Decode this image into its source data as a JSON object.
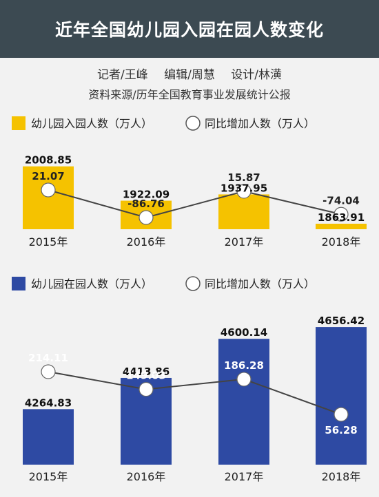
{
  "header": {
    "title": "近年全国幼儿园入园在园人数变化"
  },
  "credits": {
    "reporter": "记者/王峰",
    "editor": "编辑/周慧",
    "design": "设计/林潢"
  },
  "source": "资料来源/历年全国教育事业发展统计公报",
  "colors": {
    "gold": "#f5c200",
    "blue": "#2e4aa3",
    "line": "#444444",
    "header_bg": "#3c4a52"
  },
  "chart_data": [
    {
      "type": "bar+line",
      "categories": [
        "2015年",
        "2016年",
        "2017年",
        "2018年"
      ],
      "legend": {
        "bar": "幼儿园入园人数（万人）",
        "line": "同比增加人数（万人）"
      },
      "bar_values": [
        2008.85,
        1922.09,
        1937.95,
        1863.91
      ],
      "bar_labels": [
        "2008.85",
        "1922.09",
        "1937.95",
        "1863.91"
      ],
      "line_values": [
        21.07,
        -86.76,
        15.87,
        -74.04
      ],
      "line_labels": [
        "21.07",
        "-86.76",
        "15.87",
        "-74.04"
      ]
    },
    {
      "type": "bar+line",
      "categories": [
        "2015年",
        "2016年",
        "2017年",
        "2018年"
      ],
      "legend": {
        "bar": "幼儿园在园人数（万人）",
        "line": "同比增加人数（万人）"
      },
      "bar_values": [
        4264.83,
        4413.86,
        4600.14,
        4656.42
      ],
      "bar_labels": [
        "4264.83",
        "4413.86",
        "4600.14",
        "4656.42"
      ],
      "line_values": [
        214.11,
        149.03,
        186.28,
        56.28
      ],
      "line_labels": [
        "214.11",
        "149.03",
        "186.28",
        "56.28"
      ]
    }
  ]
}
